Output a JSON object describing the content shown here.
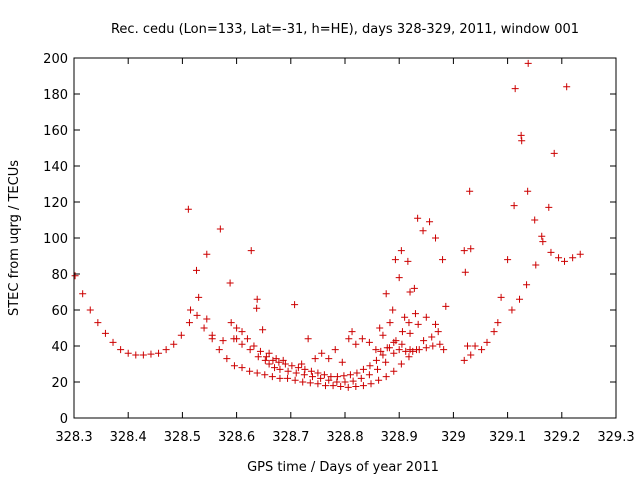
{
  "chart_data": {
    "type": "scatter",
    "title": "Rec. cedu (Lon=133, Lat=-31, h=HE), days 328-329, 2011, window 001",
    "xlabel": "GPS time / Days of year 2011",
    "ylabel": "STEC from uqrg / TECUs",
    "xlim": [
      328.3,
      329.3
    ],
    "ylim": [
      0,
      200
    ],
    "xticks": [
      328.3,
      328.4,
      328.5,
      328.6,
      328.7,
      328.8,
      328.9,
      329.0,
      329.1,
      329.2,
      329.3
    ],
    "xtick_labels": [
      "328.3",
      "328.4",
      "328.5",
      "328.6",
      "328.7",
      "328.8",
      "328.9",
      "329",
      "329.1",
      "329.2",
      "329.3"
    ],
    "yticks": [
      0,
      20,
      40,
      60,
      80,
      100,
      120,
      140,
      160,
      180,
      200
    ],
    "ytick_labels": [
      "0",
      "20",
      "40",
      "60",
      "80",
      "100",
      "120",
      "140",
      "160",
      "180",
      "200"
    ],
    "grid": false,
    "legend": "none",
    "marker": "+",
    "color": "#cc0000",
    "series": [
      {
        "points": [
          [
            328.302,
            79
          ],
          [
            328.316,
            69
          ],
          [
            328.33,
            60
          ],
          [
            328.344,
            53
          ],
          [
            328.358,
            47
          ],
          [
            328.372,
            42
          ],
          [
            328.386,
            38
          ],
          [
            328.4,
            36
          ],
          [
            328.414,
            35
          ],
          [
            328.428,
            35
          ],
          [
            328.442,
            35.5
          ],
          [
            328.456,
            36
          ],
          [
            328.47,
            38
          ],
          [
            328.484,
            41
          ],
          [
            328.498,
            46
          ],
          [
            328.511,
            116
          ],
          [
            328.513,
            53
          ],
          [
            328.526,
            82
          ],
          [
            328.527,
            57
          ],
          [
            328.54,
            50
          ],
          [
            328.545,
            91
          ],
          [
            328.555,
            44
          ],
          [
            328.568,
            38
          ],
          [
            328.582,
            33
          ],
          [
            328.596,
            29
          ],
          [
            328.61,
            28
          ],
          [
            328.624,
            26
          ],
          [
            328.638,
            25
          ],
          [
            328.652,
            24
          ],
          [
            328.666,
            23
          ],
          [
            328.68,
            22
          ],
          [
            328.694,
            22
          ],
          [
            328.708,
            21
          ],
          [
            328.722,
            20
          ],
          [
            328.736,
            19.5
          ],
          [
            328.75,
            19
          ],
          [
            328.764,
            18
          ],
          [
            328.778,
            18
          ],
          [
            328.792,
            17.5
          ],
          [
            328.806,
            17
          ],
          [
            328.82,
            17.5
          ],
          [
            328.834,
            18
          ],
          [
            328.848,
            19
          ],
          [
            328.862,
            21
          ],
          [
            328.876,
            23
          ],
          [
            328.89,
            26
          ],
          [
            328.904,
            30
          ],
          [
            328.918,
            34
          ],
          [
            328.932,
            38
          ]
        ]
      },
      {
        "points": [
          [
            328.515,
            60
          ],
          [
            328.53,
            67
          ],
          [
            328.545,
            55
          ],
          [
            328.555,
            46
          ],
          [
            328.57,
            105
          ],
          [
            328.575,
            43
          ],
          [
            328.588,
            75
          ],
          [
            328.595,
            44
          ],
          [
            328.61,
            41
          ],
          [
            328.625,
            38
          ],
          [
            328.627,
            93
          ],
          [
            328.638,
            66
          ],
          [
            328.64,
            34
          ],
          [
            328.653,
            32
          ],
          [
            328.66,
            30
          ],
          [
            328.67,
            28
          ],
          [
            328.68,
            27
          ],
          [
            328.695,
            26
          ],
          [
            328.71,
            25
          ],
          [
            328.725,
            24
          ],
          [
            328.74,
            23
          ],
          [
            328.755,
            22
          ],
          [
            328.77,
            21
          ],
          [
            328.785,
            20
          ],
          [
            328.8,
            20
          ],
          [
            328.815,
            20.5
          ],
          [
            328.83,
            22
          ],
          [
            328.845,
            24
          ],
          [
            328.86,
            27
          ],
          [
            328.875,
            31
          ],
          [
            328.89,
            36
          ],
          [
            328.905,
            41
          ],
          [
            328.92,
            47
          ],
          [
            328.935,
            52
          ],
          [
            328.95,
            56
          ]
        ]
      },
      {
        "points": [
          [
            328.59,
            53
          ],
          [
            328.6,
            50
          ],
          [
            328.61,
            48
          ],
          [
            328.62,
            44
          ],
          [
            328.632,
            40
          ],
          [
            328.644,
            37
          ],
          [
            328.655,
            34
          ],
          [
            328.667,
            32
          ],
          [
            328.678,
            31
          ],
          [
            328.69,
            30
          ],
          [
            328.702,
            29
          ],
          [
            328.714,
            28
          ],
          [
            328.726,
            27
          ],
          [
            328.738,
            26
          ],
          [
            328.75,
            25
          ],
          [
            328.762,
            24
          ],
          [
            328.774,
            23
          ],
          [
            328.786,
            23
          ],
          [
            328.798,
            23.5
          ],
          [
            328.81,
            24
          ],
          [
            328.822,
            25
          ],
          [
            328.834,
            27
          ],
          [
            328.846,
            29
          ],
          [
            328.858,
            32
          ],
          [
            328.87,
            35
          ],
          [
            328.882,
            39
          ],
          [
            328.894,
            43
          ],
          [
            328.906,
            48
          ],
          [
            328.918,
            53
          ],
          [
            328.93,
            58
          ]
        ]
      },
      {
        "points": [
          [
            328.6,
            44
          ],
          [
            328.637,
            61
          ],
          [
            328.648,
            49
          ],
          [
            328.66,
            36
          ],
          [
            328.673,
            33
          ],
          [
            328.686,
            32
          ],
          [
            328.707,
            63
          ],
          [
            328.72,
            30
          ],
          [
            328.732,
            44
          ],
          [
            328.745,
            33
          ],
          [
            328.757,
            36
          ],
          [
            328.77,
            33
          ],
          [
            328.782,
            38
          ],
          [
            328.795,
            31
          ],
          [
            328.807,
            44
          ],
          [
            328.813,
            48
          ],
          [
            328.82,
            41
          ],
          [
            328.832,
            44
          ],
          [
            328.845,
            42
          ],
          [
            328.857,
            38
          ],
          [
            328.864,
            50
          ],
          [
            328.87,
            46
          ],
          [
            328.876,
            69
          ],
          [
            328.883,
            53
          ],
          [
            328.888,
            60
          ],
          [
            328.893,
            88
          ],
          [
            328.9,
            78
          ],
          [
            328.904,
            93
          ],
          [
            328.91,
            56
          ],
          [
            328.916,
            87
          ],
          [
            328.92,
            70
          ],
          [
            328.928,
            72
          ],
          [
            328.934,
            111
          ],
          [
            328.944,
            104
          ],
          [
            328.956,
            109
          ],
          [
            328.967,
            100
          ],
          [
            328.98,
            88
          ],
          [
            328.986,
            62
          ],
          [
            328.967,
            52
          ]
        ]
      },
      {
        "points": [
          [
            328.866,
            37
          ],
          [
            328.878,
            39
          ],
          [
            328.89,
            42
          ],
          [
            328.9,
            38
          ],
          [
            328.912,
            37
          ],
          [
            328.925,
            37
          ],
          [
            328.937,
            38
          ],
          [
            328.95,
            39
          ],
          [
            328.962,
            40
          ],
          [
            328.975,
            41
          ],
          [
            328.982,
            38
          ],
          [
            328.92,
            38
          ],
          [
            328.945,
            43
          ],
          [
            328.96,
            45
          ],
          [
            328.972,
            48
          ]
        ]
      },
      {
        "points": [
          [
            329.02,
            32
          ],
          [
            329.026,
            40
          ],
          [
            329.032,
            35
          ],
          [
            329.04,
            40
          ],
          [
            329.052,
            38
          ],
          [
            329.062,
            42
          ],
          [
            329.075,
            48
          ],
          [
            329.082,
            53
          ],
          [
            329.088,
            67
          ],
          [
            329.1,
            88
          ],
          [
            329.108,
            60
          ],
          [
            329.112,
            118
          ],
          [
            329.114,
            183
          ],
          [
            329.122,
            66
          ],
          [
            329.125,
            157
          ],
          [
            329.126,
            154
          ],
          [
            329.135,
            74
          ],
          [
            329.137,
            126
          ],
          [
            329.138,
            197
          ],
          [
            329.15,
            110
          ],
          [
            329.152,
            85
          ],
          [
            329.163,
            101
          ],
          [
            329.165,
            98
          ],
          [
            329.176,
            117
          ],
          [
            329.18,
            92
          ],
          [
            329.186,
            147
          ],
          [
            329.194,
            89
          ],
          [
            329.205,
            87
          ],
          [
            329.209,
            184
          ],
          [
            329.22,
            89
          ],
          [
            329.234,
            91
          ],
          [
            329.02,
            93
          ],
          [
            329.022,
            81
          ],
          [
            329.03,
            126
          ],
          [
            329.032,
            94
          ]
        ]
      }
    ]
  }
}
